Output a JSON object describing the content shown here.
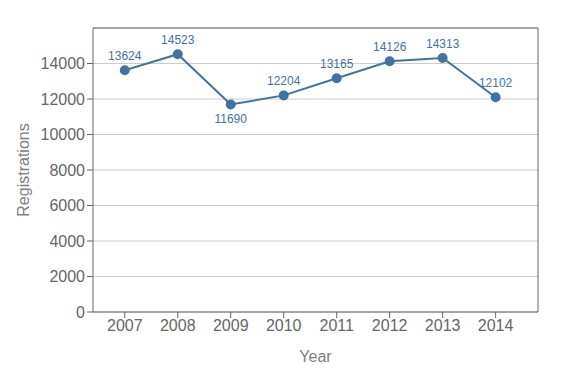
{
  "chart_data": {
    "type": "line",
    "x": [
      2007,
      2008,
      2009,
      2010,
      2011,
      2012,
      2013,
      2014
    ],
    "values": [
      13624,
      14523,
      11690,
      12204,
      13165,
      14126,
      14313,
      12102
    ],
    "color": "#4472a0",
    "marker": "circle",
    "xlabel": "Year",
    "ylabel": "Registrations",
    "xlim": [
      2006.4,
      2014.8
    ],
    "ylim": [
      0,
      16000
    ],
    "xticks": [
      2007,
      2008,
      2009,
      2010,
      2011,
      2012,
      2013,
      2014
    ],
    "yticks": [
      0,
      2000,
      4000,
      6000,
      8000,
      10000,
      12000,
      14000
    ],
    "grid": true,
    "data_labels": true
  }
}
